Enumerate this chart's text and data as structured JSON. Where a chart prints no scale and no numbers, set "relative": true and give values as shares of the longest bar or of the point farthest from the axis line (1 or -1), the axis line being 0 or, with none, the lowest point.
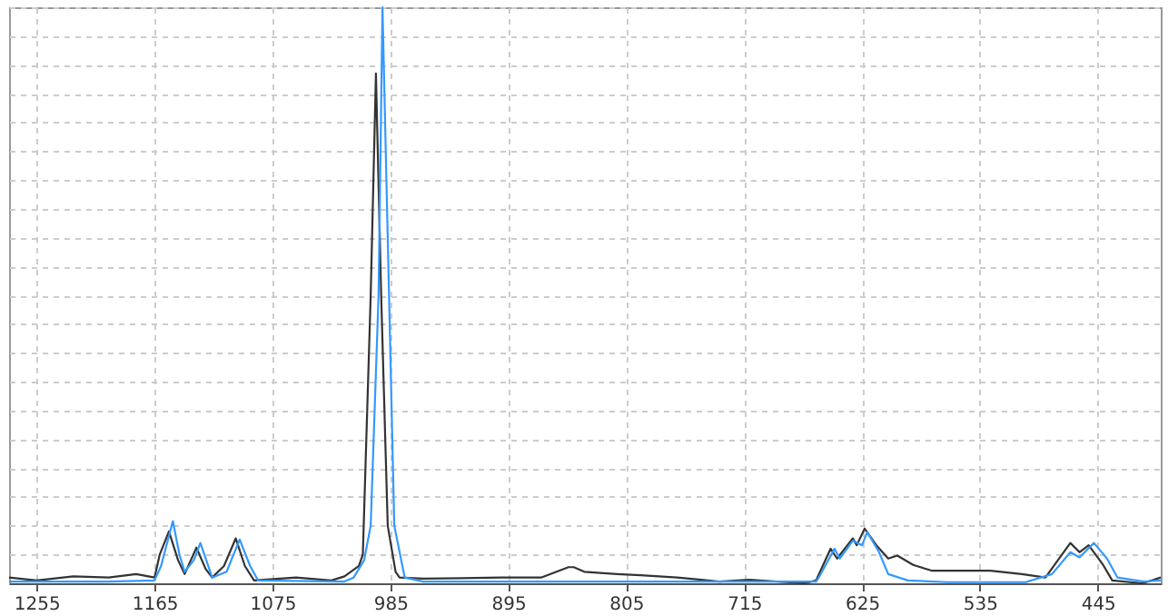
{
  "chart_data": {
    "type": "line",
    "relative": true,
    "xlim": [
      1276,
      397
    ],
    "xticks": [
      1255,
      1165,
      1075,
      985,
      895,
      805,
      715,
      625,
      535,
      445
    ],
    "grid": true,
    "line_style": "solid",
    "series": [
      {
        "color": "#333333",
        "x": [
          1276,
          1255,
          1227,
          1200,
          1179,
          1165,
          1161,
          1154,
          1147,
          1142,
          1133,
          1126,
          1121,
          1112,
          1103,
          1096,
          1089,
          1057,
          1030,
          1020,
          1009,
          1006,
          1000,
          996,
          992,
          987,
          981,
          978,
          960,
          900,
          870,
          849,
          845,
          837,
          812,
          794,
          766,
          734,
          711,
          669,
          660,
          649,
          644,
          632,
          629,
          623,
          614,
          605,
          598,
          586,
          572,
          549,
          527,
          503,
          485,
          466,
          459,
          452,
          441,
          434,
          411,
          397
        ],
        "values": [
          0.01,
          0.005,
          0.012,
          0.01,
          0.016,
          0.01,
          0.05,
          0.09,
          0.04,
          0.016,
          0.062,
          0.025,
          0.01,
          0.03,
          0.078,
          0.03,
          0.005,
          0.01,
          0.005,
          0.012,
          0.03,
          0.05,
          0.5,
          0.885,
          0.5,
          0.1,
          0.02,
          0.01,
          0.008,
          0.01,
          0.01,
          0.028,
          0.028,
          0.02,
          0.016,
          0.014,
          0.01,
          0.003,
          0.006,
          0,
          0.005,
          0.06,
          0.043,
          0.078,
          0.066,
          0.095,
          0.066,
          0.043,
          0.048,
          0.032,
          0.022,
          0.022,
          0.022,
          0.016,
          0.01,
          0.07,
          0.054,
          0.066,
          0.032,
          0.005,
          0,
          0.01
        ]
      },
      {
        "color": "#3399ff",
        "x": [
          1276,
          1200,
          1165,
          1160,
          1151,
          1146,
          1142,
          1135,
          1130,
          1124,
          1121,
          1110,
          1100,
          1092,
          1086,
          1020,
          1013,
          1005,
          1000,
          994,
          991,
          986,
          982,
          974,
          960,
          900,
          800,
          700,
          660,
          658,
          646,
          642,
          632,
          625,
          621,
          612,
          605,
          590,
          560,
          500,
          480,
          466,
          459,
          448,
          438,
          430,
          410,
          397
        ],
        "values": [
          0.003,
          0.003,
          0.005,
          0.03,
          0.108,
          0.05,
          0.02,
          0.04,
          0.07,
          0.03,
          0.01,
          0.02,
          0.076,
          0.03,
          0.005,
          0.003,
          0.01,
          0.04,
          0.1,
          0.5,
          1.0,
          0.5,
          0.1,
          0.01,
          0.003,
          0.003,
          0.003,
          0.003,
          0.003,
          0.01,
          0.06,
          0.043,
          0.074,
          0.066,
          0.089,
          0.054,
          0.016,
          0.005,
          0.002,
          0.002,
          0.016,
          0.054,
          0.045,
          0.07,
          0.043,
          0.01,
          0.003,
          0.005
        ]
      }
    ]
  }
}
